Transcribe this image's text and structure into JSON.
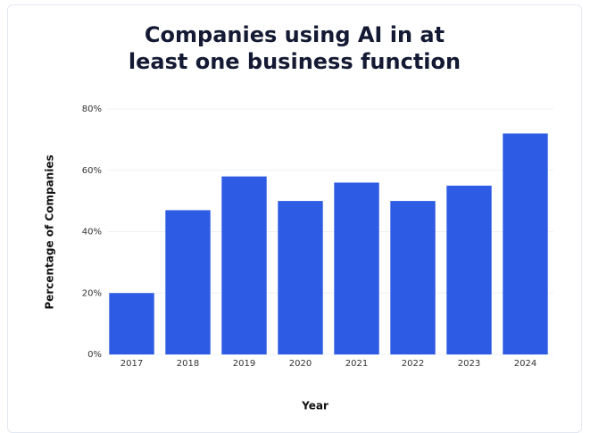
{
  "chart_data": {
    "type": "bar",
    "title": "Companies using AI in at least one business function",
    "x_label": "Year",
    "y_label": "Percentage of Companies",
    "categories": [
      "2017",
      "2018",
      "2019",
      "2020",
      "2021",
      "2022",
      "2023",
      "2024"
    ],
    "values": [
      20,
      47,
      58,
      50,
      56,
      50,
      55,
      72
    ],
    "color": "#2d5be3",
    "ylim": [
      0,
      80
    ],
    "yticks": [
      {
        "value": 0,
        "label": "0%"
      },
      {
        "value": 20,
        "label": "20%"
      },
      {
        "value": 40,
        "label": "40%"
      },
      {
        "value": 60,
        "label": "60%"
      },
      {
        "value": 80,
        "label": "80%"
      }
    ],
    "grid": true
  }
}
